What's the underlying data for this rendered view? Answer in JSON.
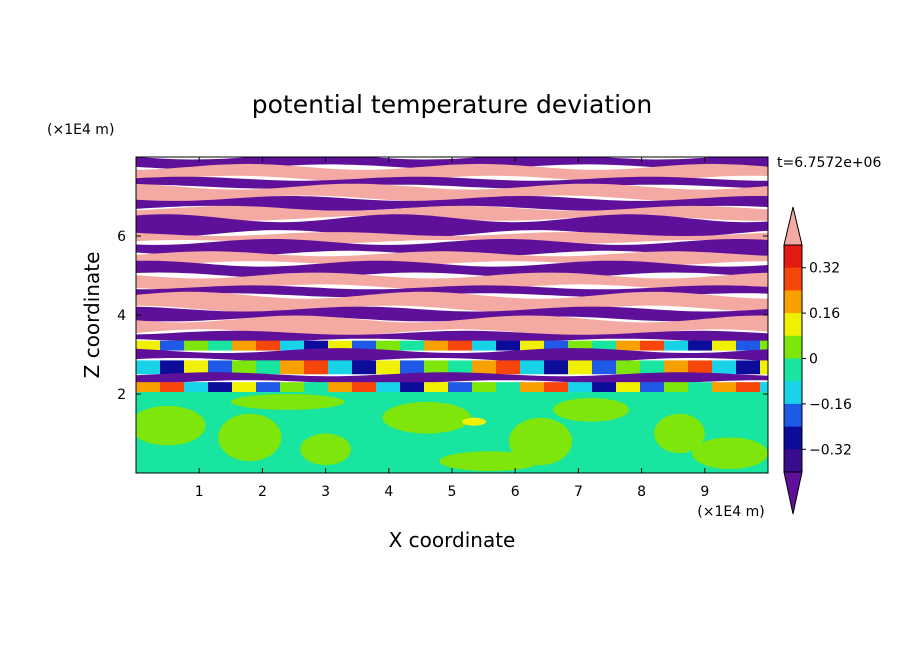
{
  "chart_data": {
    "type": "heatmap",
    "title": "potential temperature deviation",
    "xlabel": "X coordinate",
    "ylabel": "Z coordinate",
    "x_unit": "(×1E4 m)",
    "y_unit": "(×1E4 m)",
    "time_label": "t=6.7572e+06",
    "xlim": [
      0,
      10
    ],
    "ylim": [
      0,
      8
    ],
    "x_ticks": [
      "1",
      "2",
      "3",
      "4",
      "5",
      "6",
      "7",
      "8",
      "9"
    ],
    "y_ticks": [
      "2",
      "4",
      "6"
    ],
    "colorbar": {
      "tick_labels": [
        "0.32",
        "0.16",
        "0",
        "−0.16",
        "−0.32"
      ],
      "levels": [
        -0.4,
        -0.32,
        -0.24,
        -0.16,
        -0.08,
        0,
        0.08,
        0.16,
        0.24,
        0.32,
        0.4
      ],
      "colors": [
        "#3a0d8c",
        "#0c0c9a",
        "#1e5ae6",
        "#18d2e8",
        "#18e6a0",
        "#7ee60a",
        "#f0f000",
        "#f7a000",
        "#f7460a",
        "#e61a14"
      ],
      "over_color": "#f4a9a3",
      "under_color": "#5f109a"
    },
    "field_bands": [
      {
        "z": [
          7.75,
          8.0
        ],
        "value": "under"
      },
      {
        "z": [
          7.45,
          7.75
        ],
        "value": "over"
      },
      {
        "z": [
          7.25,
          7.45
        ],
        "value": "under"
      },
      {
        "z": [
          6.95,
          7.25
        ],
        "value": "over"
      },
      {
        "z": [
          6.7,
          6.95
        ],
        "value": "under"
      },
      {
        "z": [
          6.45,
          6.7
        ],
        "value": "over"
      },
      {
        "z": [
          6.05,
          6.45
        ],
        "value": "under"
      },
      {
        "z": [
          5.85,
          6.05
        ],
        "value": "over"
      },
      {
        "z": [
          5.55,
          5.85
        ],
        "value": "under"
      },
      {
        "z": [
          5.3,
          5.55
        ],
        "value": "over"
      },
      {
        "z": [
          5.0,
          5.3
        ],
        "value": "under"
      },
      {
        "z": [
          4.7,
          5.0
        ],
        "value": "over"
      },
      {
        "z": [
          4.5,
          4.7
        ],
        "value": "under"
      },
      {
        "z": [
          4.15,
          4.5
        ],
        "value": "over"
      },
      {
        "z": [
          3.9,
          4.15
        ],
        "value": "under"
      },
      {
        "z": [
          3.55,
          3.9
        ],
        "value": "over"
      },
      {
        "z": [
          3.35,
          3.55
        ],
        "value": "under"
      },
      {
        "z": [
          3.1,
          3.35
        ],
        "value": "mixed"
      },
      {
        "z": [
          2.85,
          3.1
        ],
        "value": "under"
      },
      {
        "z": [
          2.5,
          2.85
        ],
        "value": "mixed"
      },
      {
        "z": [
          2.3,
          2.5
        ],
        "value": "under"
      },
      {
        "z": [
          2.05,
          2.3
        ],
        "value": "mixed"
      },
      {
        "z": [
          0.0,
          2.05
        ],
        "value": "near-zero"
      }
    ]
  }
}
